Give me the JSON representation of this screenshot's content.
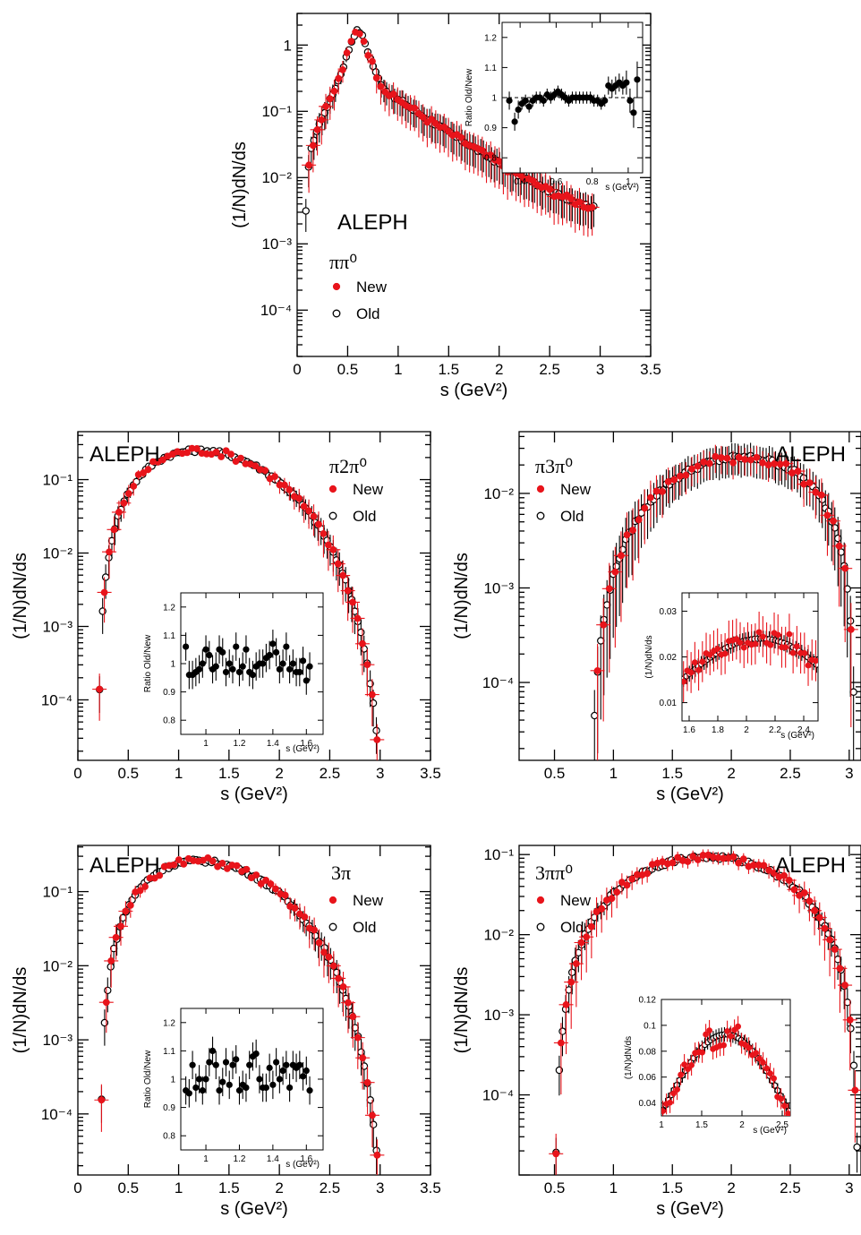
{
  "figure": {
    "experiment": "ALEPH"
  },
  "legend": {
    "new_label": "New",
    "old_label": "Old",
    "new_color": "#e8141b",
    "old_color": "#000000"
  },
  "chart_data": [
    {
      "id": "pipi0",
      "type": "scatter",
      "channel_label": "ππ⁰",
      "experiment_label": "ALEPH",
      "xlabel": "s (GeV²)",
      "ylabel": "(1/N)dN/ds",
      "xlim": [
        0,
        3.5
      ],
      "ylim": [
        2e-05,
        3
      ],
      "yscale": "log",
      "xticks": [
        0,
        0.5,
        1,
        1.5,
        2,
        2.5,
        3,
        3.5
      ],
      "xticklabels": [
        "0",
        "0.5",
        "1",
        "1.5",
        "2",
        "2.5",
        "3",
        "3.5"
      ],
      "yticks": [
        0.0001,
        0.001,
        0.01,
        0.1,
        1
      ],
      "yticklabels": [
        "10⁻⁴",
        "10⁻³",
        "10⁻²",
        "10⁻¹",
        "1"
      ],
      "legend_position": "left",
      "shape": {
        "type": "rho",
        "peak_x": 0.6,
        "peak_y": 2.0,
        "range": [
          0.02,
          2.95
        ],
        "n_old": 110,
        "n_new": 70
      },
      "inset": {
        "type": "ratio",
        "ylabel": "Ratio Old/New",
        "xlabel": "s (GeV²)",
        "xlim": [
          0.3,
          1.08
        ],
        "ylim": [
          0.75,
          1.25
        ],
        "xticks": [
          0.4,
          0.6,
          0.8,
          1.0
        ],
        "xticklabels": [
          "0.4",
          "0.6",
          "0.8",
          "1"
        ],
        "yticks": [
          0.8,
          0.9,
          1.0,
          1.1,
          1.2
        ],
        "yticklabels": [
          "0.8",
          "0.9",
          "1",
          "1.1",
          "1.2"
        ],
        "dashed_reference": 1.0,
        "x": [
          0.34,
          0.37,
          0.39,
          0.41,
          0.43,
          0.45,
          0.47,
          0.49,
          0.51,
          0.53,
          0.55,
          0.57,
          0.59,
          0.61,
          0.63,
          0.65,
          0.67,
          0.69,
          0.71,
          0.73,
          0.75,
          0.77,
          0.79,
          0.81,
          0.83,
          0.85,
          0.87,
          0.89,
          0.91,
          0.93,
          0.95,
          0.97,
          0.99,
          1.01,
          1.03,
          1.05
        ],
        "y": [
          0.99,
          0.92,
          0.96,
          0.98,
          0.99,
          0.97,
          0.99,
          1.0,
          1.0,
          0.99,
          1.01,
          1.0,
          1.01,
          1.02,
          1.01,
          1.0,
          0.99,
          1.0,
          1.0,
          1.0,
          1.0,
          1.0,
          1.0,
          0.99,
          0.99,
          0.98,
          0.99,
          1.04,
          1.03,
          1.04,
          1.05,
          1.04,
          1.05,
          0.99,
          0.95,
          1.06
        ],
        "err": [
          0.03,
          0.03,
          0.03,
          0.02,
          0.02,
          0.02,
          0.02,
          0.02,
          0.02,
          0.02,
          0.02,
          0.02,
          0.02,
          0.02,
          0.02,
          0.02,
          0.02,
          0.02,
          0.02,
          0.02,
          0.02,
          0.02,
          0.02,
          0.02,
          0.02,
          0.02,
          0.02,
          0.03,
          0.03,
          0.03,
          0.03,
          0.03,
          0.04,
          0.04,
          0.05,
          0.06
        ]
      }
    },
    {
      "id": "pi2pi0",
      "type": "scatter",
      "channel_label": "π2π⁰",
      "experiment_label": "ALEPH",
      "xlabel": "s (GeV²)",
      "ylabel": "(1/N)dN/ds",
      "xlim": [
        0,
        3.5
      ],
      "ylim": [
        1.5e-05,
        0.45
      ],
      "yscale": "log",
      "xticks": [
        0,
        0.5,
        1,
        1.5,
        2,
        2.5,
        3,
        3.5
      ],
      "xticklabels": [
        "0",
        "0.5",
        "1",
        "1.5",
        "2",
        "2.5",
        "3",
        "3.5"
      ],
      "yticks": [
        0.0001,
        0.001,
        0.01,
        0.1
      ],
      "yticklabels": [
        "10⁻⁴",
        "10⁻³",
        "10⁻²",
        "10⁻¹"
      ],
      "legend_position": "right",
      "shape": {
        "type": "bell",
        "range": [
          0.2,
          3.1
        ],
        "peak_x": 1.2,
        "peak_y": 0.25,
        "n_old": 95,
        "n_new": 60
      },
      "inset": {
        "type": "ratio",
        "ylabel": "Ratio Old/New",
        "xlabel": "s (GeV²)",
        "xlim": [
          0.85,
          1.7
        ],
        "ylim": [
          0.75,
          1.25
        ],
        "xticks": [
          1.0,
          1.2,
          1.4,
          1.6
        ],
        "xticklabels": [
          "1",
          "1.2",
          "1.4",
          "1.6"
        ],
        "yticks": [
          0.8,
          0.9,
          1.0,
          1.1,
          1.2
        ],
        "yticklabels": [
          "0.8",
          "0.9",
          "1",
          "1.1",
          "1.2"
        ],
        "dashed_reference": null,
        "x": [
          0.88,
          0.9,
          0.92,
          0.94,
          0.96,
          0.98,
          1.0,
          1.02,
          1.04,
          1.06,
          1.08,
          1.1,
          1.12,
          1.14,
          1.16,
          1.18,
          1.2,
          1.22,
          1.24,
          1.26,
          1.28,
          1.3,
          1.32,
          1.34,
          1.36,
          1.38,
          1.4,
          1.42,
          1.44,
          1.46,
          1.48,
          1.5,
          1.52,
          1.54,
          1.56,
          1.58,
          1.6,
          1.62
        ],
        "y": [
          1.06,
          0.96,
          0.96,
          0.97,
          0.98,
          1.0,
          1.05,
          1.03,
          0.98,
          0.99,
          1.05,
          1.04,
          0.97,
          1.0,
          0.98,
          1.06,
          0.97,
          0.99,
          1.05,
          0.97,
          0.96,
          0.99,
          1.0,
          1.0,
          1.02,
          1.03,
          1.07,
          1.04,
          0.98,
          1.0,
          1.06,
          0.98,
          1.0,
          0.97,
          0.97,
          1.01,
          0.94,
          0.99
        ],
        "err": [
          0.05,
          0.05,
          0.05,
          0.05,
          0.05,
          0.05,
          0.05,
          0.05,
          0.05,
          0.05,
          0.05,
          0.05,
          0.05,
          0.05,
          0.05,
          0.05,
          0.05,
          0.05,
          0.05,
          0.05,
          0.05,
          0.05,
          0.05,
          0.05,
          0.05,
          0.05,
          0.05,
          0.05,
          0.05,
          0.05,
          0.05,
          0.05,
          0.05,
          0.05,
          0.05,
          0.05,
          0.05,
          0.05
        ]
      }
    },
    {
      "id": "pi3pi0",
      "type": "scatter",
      "channel_label": "π3π⁰",
      "experiment_label": "ALEPH",
      "xlabel": "s (GeV²)",
      "ylabel": "(1/N)dN/ds",
      "xlim": [
        0.2,
        3.1
      ],
      "ylim": [
        1.5e-05,
        0.045
      ],
      "yscale": "log",
      "xticks": [
        0.5,
        1,
        1.5,
        2,
        2.5,
        3
      ],
      "xticklabels": [
        "0.5",
        "1",
        "1.5",
        "2",
        "2.5",
        "3"
      ],
      "yticks": [
        0.0001,
        0.001,
        0.01
      ],
      "yticklabels": [
        "10⁻⁴",
        "10⁻³",
        "10⁻²"
      ],
      "legend_position": "left",
      "shape": {
        "type": "bell",
        "range": [
          0.8,
          3.05
        ],
        "peak_x": 2.1,
        "peak_y": 0.024,
        "n_old": 85,
        "n_new": 45
      },
      "inset": {
        "type": "zoom",
        "ylabel": "(1/N)dN/ds",
        "xlabel": "s (GeV²)",
        "xlim": [
          1.55,
          2.5
        ],
        "ylim": [
          0.006,
          0.034
        ],
        "xticks": [
          1.6,
          1.8,
          2.0,
          2.2,
          2.4
        ],
        "xticklabels": [
          "1.6",
          "1.8",
          "2",
          "2.2",
          "2.4"
        ],
        "yticks": [
          0.01,
          0.02,
          0.03
        ],
        "yticklabels": [
          "0.01",
          "0.02",
          "0.03"
        ],
        "dashed_reference": null
      }
    },
    {
      "id": "threepi",
      "type": "scatter",
      "channel_label": "3π",
      "experiment_label": "ALEPH",
      "xlabel": "s (GeV²)",
      "ylabel": "(1/N)dN/ds",
      "xlim": [
        0,
        3.5
      ],
      "ylim": [
        1.5e-05,
        0.42
      ],
      "yscale": "log",
      "xticks": [
        0,
        0.5,
        1,
        1.5,
        2,
        2.5,
        3,
        3.5
      ],
      "xticklabels": [
        "0",
        "0.5",
        "1",
        "1.5",
        "2",
        "2.5",
        "3",
        "3.5"
      ],
      "yticks": [
        0.0001,
        0.001,
        0.01,
        0.1
      ],
      "yticklabels": [
        "10⁻⁴",
        "10⁻³",
        "10⁻²",
        "10⁻¹"
      ],
      "legend_position": "right",
      "shape": {
        "type": "bell",
        "range": [
          0.22,
          3.1
        ],
        "peak_x": 1.2,
        "peak_y": 0.26,
        "n_old": 95,
        "n_new": 60
      },
      "inset": {
        "type": "ratio",
        "ylabel": "Ratio Old/New",
        "xlabel": "s (GeV²)",
        "xlim": [
          0.85,
          1.7
        ],
        "ylim": [
          0.75,
          1.25
        ],
        "xticks": [
          1.0,
          1.2,
          1.4,
          1.6
        ],
        "xticklabels": [
          "1",
          "1.2",
          "1.4",
          "1.6"
        ],
        "yticks": [
          0.8,
          0.9,
          1.0,
          1.1,
          1.2
        ],
        "yticklabels": [
          "0.8",
          "0.9",
          "1",
          "1.1",
          "1.2"
        ],
        "dashed_reference": null,
        "x": [
          0.88,
          0.9,
          0.92,
          0.94,
          0.96,
          0.98,
          1.0,
          1.02,
          1.04,
          1.06,
          1.08,
          1.1,
          1.12,
          1.14,
          1.16,
          1.18,
          1.2,
          1.22,
          1.24,
          1.26,
          1.28,
          1.3,
          1.32,
          1.34,
          1.36,
          1.38,
          1.4,
          1.42,
          1.44,
          1.46,
          1.48,
          1.5,
          1.52,
          1.54,
          1.56,
          1.58,
          1.6,
          1.62
        ],
        "y": [
          0.96,
          0.95,
          1.05,
          0.97,
          1.0,
          0.96,
          1.0,
          1.06,
          1.1,
          1.05,
          0.96,
          0.99,
          1.06,
          0.98,
          1.05,
          1.07,
          0.96,
          0.98,
          0.97,
          1.05,
          1.08,
          1.09,
          1.0,
          0.97,
          0.97,
          1.04,
          0.98,
          1.06,
          1.0,
          1.03,
          1.05,
          0.97,
          1.05,
          1.04,
          1.05,
          1.01,
          1.03,
          0.96
        ],
        "err": [
          0.05,
          0.05,
          0.05,
          0.05,
          0.05,
          0.05,
          0.05,
          0.05,
          0.05,
          0.05,
          0.05,
          0.05,
          0.05,
          0.05,
          0.05,
          0.05,
          0.05,
          0.05,
          0.05,
          0.05,
          0.05,
          0.05,
          0.05,
          0.05,
          0.05,
          0.05,
          0.05,
          0.05,
          0.05,
          0.05,
          0.05,
          0.05,
          0.05,
          0.05,
          0.05,
          0.05,
          0.05,
          0.05
        ]
      }
    },
    {
      "id": "threepipi0",
      "type": "scatter",
      "channel_label": "3ππ⁰",
      "experiment_label": "ALEPH",
      "xlabel": "s (GeV²)",
      "ylabel": "(1/N)dN/ds",
      "xlim": [
        0.2,
        3.1
      ],
      "ylim": [
        1e-05,
        0.13
      ],
      "yscale": "log",
      "xticks": [
        0.5,
        1,
        1.5,
        2,
        2.5,
        3
      ],
      "xticklabels": [
        "0.5",
        "1",
        "1.5",
        "2",
        "2.5",
        "3"
      ],
      "yticks": [
        0.0001,
        0.001,
        0.01,
        0.1
      ],
      "yticklabels": [
        "10⁻⁴",
        "10⁻³",
        "10⁻²",
        "10⁻¹"
      ],
      "legend_position": "left",
      "shape": {
        "type": "bell",
        "range": [
          0.5,
          3.08
        ],
        "peak_x": 1.8,
        "peak_y": 0.093,
        "n_old": 95,
        "n_new": 60
      },
      "inset": {
        "type": "zoom",
        "ylabel": "(1/N)dN/ds",
        "xlabel": "s (GeV²)",
        "xlim": [
          1.0,
          2.6
        ],
        "ylim": [
          0.03,
          0.12
        ],
        "xticks": [
          1.0,
          1.5,
          2.0,
          2.5
        ],
        "xticklabels": [
          "1",
          "1.5",
          "2",
          "2.5"
        ],
        "yticks": [
          0.04,
          0.06,
          0.08,
          0.1,
          0.12
        ],
        "yticklabels": [
          "0.04",
          "0.06",
          "0.08",
          "0.1",
          "0.12"
        ],
        "dashed_reference": null
      }
    }
  ]
}
